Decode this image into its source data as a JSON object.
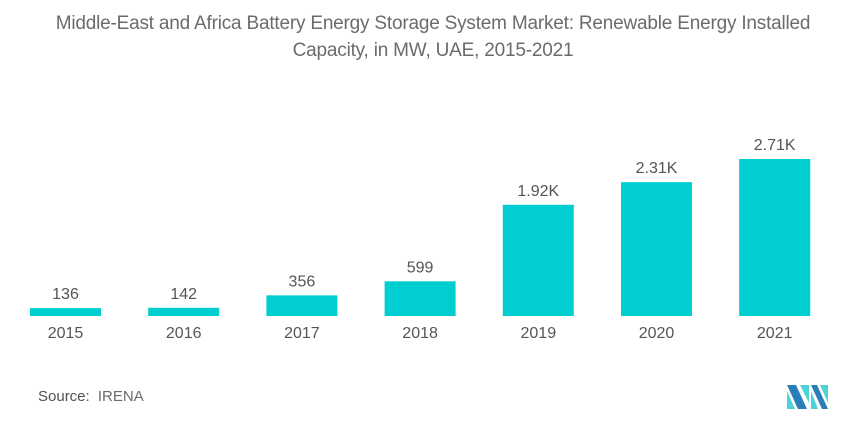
{
  "chart_data": {
    "type": "bar",
    "title": "Middle-East and Africa Battery Energy Storage System Market: Renewable Energy Installed Capacity, in MW, UAE, 2015-2021",
    "title_lines": [
      "Middle-East and Africa Battery Energy Storage System Market: Renewable Energy Installed",
      "Capacity, in MW, UAE, 2015-2021"
    ],
    "categories": [
      "2015",
      "2016",
      "2017",
      "2018",
      "2019",
      "2020",
      "2021"
    ],
    "values": [
      136,
      142,
      356,
      599,
      1920,
      2310,
      2710
    ],
    "data_labels": [
      "136",
      "142",
      "356",
      "599",
      "1.92K",
      "2.31K",
      "2.71K"
    ],
    "xlabel": "",
    "ylabel": "",
    "ylim": [
      0,
      2710
    ],
    "grid": false,
    "legend": "none",
    "bar_color": "#00ced1"
  },
  "footer": {
    "source_label": "Source:",
    "source_value": "IRENA"
  },
  "logo": {
    "name": "mordor-intelligence-logo",
    "colors": [
      "#2a7fb8",
      "#4fd1d9"
    ]
  }
}
